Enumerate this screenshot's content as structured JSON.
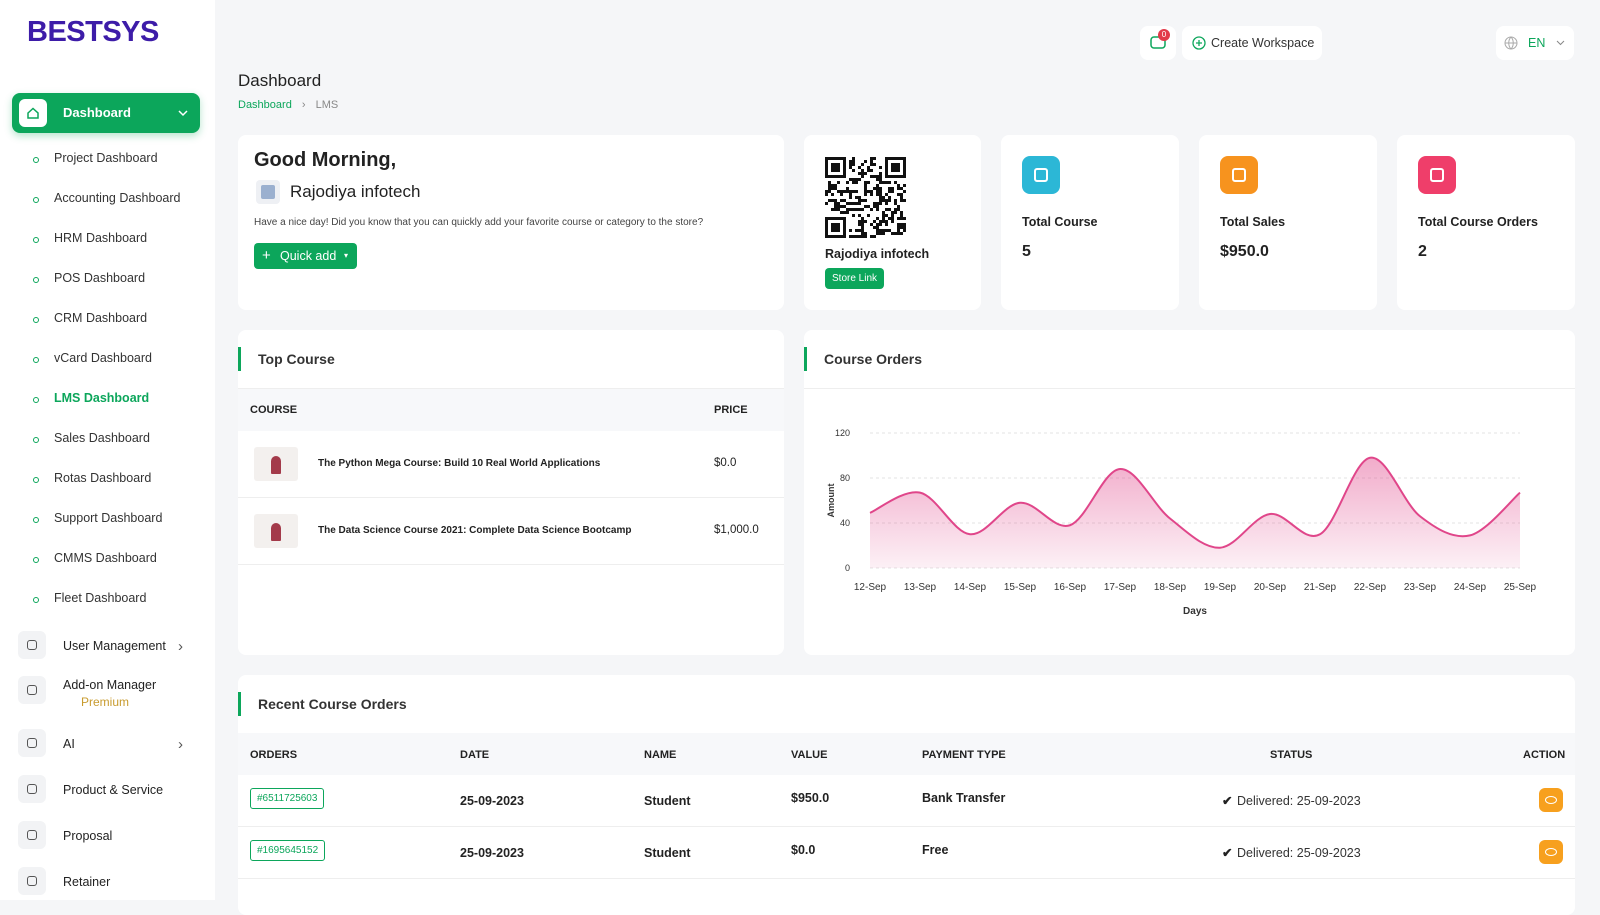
{
  "brand": "BESTSYS",
  "sidebar": {
    "active": "Dashboard",
    "submenu": [
      "Project Dashboard",
      "Accounting Dashboard",
      "HRM Dashboard",
      "POS Dashboard",
      "CRM Dashboard",
      "vCard Dashboard",
      "LMS Dashboard",
      "Sales Dashboard",
      "Rotas Dashboard",
      "Support Dashboard",
      "CMMS Dashboard",
      "Fleet Dashboard"
    ],
    "menu": [
      {
        "label": "User Management"
      },
      {
        "label": "Add-on Manager",
        "badge": "Premium"
      },
      {
        "label": "AI"
      },
      {
        "label": "Product & Service"
      },
      {
        "label": "Proposal"
      },
      {
        "label": "Retainer"
      }
    ]
  },
  "header": {
    "notifications": 0,
    "create_workspace": "Create Workspace",
    "language": "EN"
  },
  "page": {
    "title": "Dashboard",
    "breadcrumb": [
      "Dashboard",
      "LMS"
    ]
  },
  "welcome": {
    "greeting": "Good Morning,",
    "company": "Rajodiya infotech",
    "message": "Have a nice day! Did you know that you can quickly add your favorite course or category to the store?",
    "button": "Quick add"
  },
  "store": {
    "name": "Rajodiya infotech",
    "button": "Store Link"
  },
  "stats": [
    {
      "label": "Total Course",
      "value": 5
    },
    {
      "label": "Total Sales",
      "value": "$950.0"
    },
    {
      "label": "Total Course Orders",
      "value": 2
    }
  ],
  "top_course": {
    "title": "Top Course",
    "columns": [
      "COURSE",
      "PRICE"
    ],
    "rows": [
      [
        "The Python Mega Course: Build 10 Real World Applications",
        "$0.0"
      ],
      [
        "The Data Science Course 2021: Complete Data Science Bootcamp",
        "$1,000.0"
      ]
    ]
  },
  "course_orders": {
    "title": "Course Orders",
    "chart": {
      "type": "area",
      "x_label": "Days",
      "y_label": "Amount",
      "categories": [
        "12-Sep",
        "13-Sep",
        "14-Sep",
        "15-Sep",
        "16-Sep",
        "17-Sep",
        "18-Sep",
        "19-Sep",
        "20-Sep",
        "21-Sep",
        "22-Sep",
        "23-Sep",
        "24-Sep",
        "25-Sep"
      ],
      "values": [
        49,
        67,
        30,
        58,
        38,
        88,
        44,
        18,
        48,
        30,
        98,
        46,
        29,
        67
      ],
      "color": "#e0468a",
      "ylim": [
        0,
        120
      ],
      "yticks": [
        0,
        40,
        80,
        120
      ],
      "grid": true
    }
  },
  "recent_orders": {
    "title": "Recent Course Orders",
    "columns": [
      "ORDERS",
      "DATE",
      "NAME",
      "VALUE",
      "PAYMENT TYPE",
      "STATUS",
      "ACTION"
    ],
    "rows": [
      {
        "order": "#6511725603",
        "date": "25-09-2023",
        "name": "Student",
        "value": "$950.0",
        "payment": "Bank Transfer",
        "status": "Delivered: 25-09-2023"
      },
      {
        "order": "#1695645152",
        "date": "25-09-2023",
        "name": "Student",
        "value": "$0.0",
        "payment": "Free",
        "status": "Delivered: 25-09-2023"
      }
    ]
  }
}
